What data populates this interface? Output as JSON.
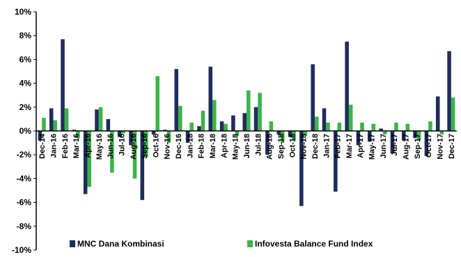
{
  "chart_data": {
    "type": "bar",
    "title": "",
    "xlabel": "",
    "ylabel": "",
    "ylim": [
      -10,
      10
    ],
    "yticks": [
      "-10%",
      "-8%",
      "-6%",
      "-4%",
      "-2%",
      "0%",
      "2%",
      "4%",
      "6%",
      "8%",
      "10%"
    ],
    "gridlines": false,
    "legend_position": "bottom",
    "categories": [
      "Dec-14",
      "Jan-16",
      "Feb-16",
      "Mar-16",
      "Apr-16",
      "May-16",
      "Jun-16",
      "Jul-16",
      "Aug-16",
      "Sep-16",
      "Oct-16",
      "Nov-16",
      "Dec-16",
      "Jan-18",
      "Feb-18",
      "Mar-18",
      "Apr-18",
      "May-18",
      "Jun-18",
      "Jul-18",
      "Aug-18",
      "Sep-18",
      "Oct-18",
      "Nov-18",
      "Dec-18",
      "Jan-17",
      "Feb-17",
      "Mar-17",
      "Apr-17",
      "May-17",
      "Jun-17",
      "Jul-17",
      "Aug-17",
      "Sep-17",
      "Oct-17",
      "Nov-17",
      "Dec-17"
    ],
    "series": [
      {
        "name": "MNC Dana Kombinasi",
        "color": "#1f2d5c",
        "values": [
          -0.8,
          1.9,
          7.7,
          0.1,
          -5.3,
          1.8,
          1.0,
          -0.5,
          -1.2,
          -5.8,
          -0.3,
          0.1,
          5.2,
          -1.0,
          0.4,
          5.4,
          0.8,
          1.3,
          1.5,
          2.0,
          -2.0,
          -0.3,
          -0.5,
          -6.3,
          5.6,
          1.9,
          -5.1,
          7.5,
          -1.2,
          -0.9,
          0.2,
          -1.9,
          -0.8,
          -0.6,
          -2.1,
          2.9,
          6.7
        ]
      },
      {
        "name": "Infovesta Balance Fund Index",
        "color": "#3cb44a",
        "values": [
          1.1,
          0.9,
          1.9,
          -0.6,
          -4.7,
          2.0,
          -3.5,
          -0.2,
          -4.0,
          -2.2,
          4.6,
          -1.0,
          2.1,
          0.7,
          1.7,
          2.6,
          0.6,
          -0.4,
          3.4,
          3.2,
          0.8,
          -1.0,
          -0.8,
          -0.4,
          1.2,
          0.7,
          0.7,
          2.2,
          0.7,
          0.6,
          -0.3,
          0.7,
          0.6,
          -0.8,
          0.8,
          -0.3,
          2.8
        ]
      }
    ]
  }
}
